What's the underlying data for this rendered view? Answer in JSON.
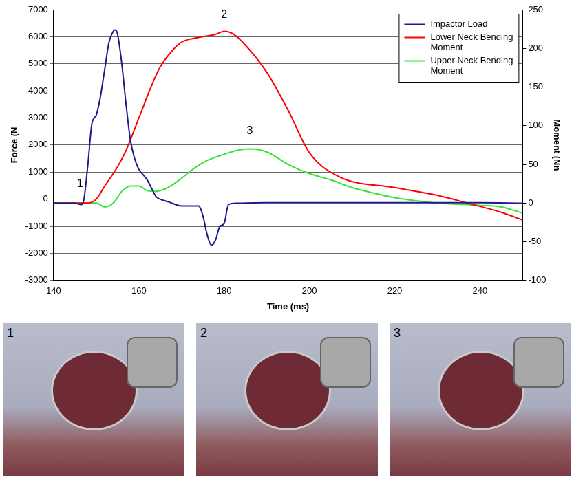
{
  "chart_data": {
    "type": "line",
    "x_label": "Time (ms)",
    "y_label": "Force (N",
    "y2_label": "Moment (Nn",
    "xlim": [
      140,
      250
    ],
    "xticks": [
      140,
      160,
      180,
      200,
      220,
      240
    ],
    "ylim": [
      -3000,
      7000
    ],
    "yticks": [
      -3000,
      -2000,
      -1000,
      0,
      1000,
      2000,
      3000,
      4000,
      5000,
      6000,
      7000
    ],
    "y2lim": [
      -100,
      250
    ],
    "y2ticks": [
      -100,
      -50,
      0,
      50,
      100,
      150,
      200,
      250
    ],
    "grid": true,
    "legend": "upper right",
    "series": [
      {
        "name": "Impactor Load",
        "color": "#1a1a8c",
        "axis": "y",
        "x": [
          140,
          145,
          146.5,
          147,
          148,
          149,
          150,
          151,
          152,
          153,
          154,
          154.5,
          155,
          156,
          157,
          158,
          159,
          160,
          161,
          162,
          163,
          164,
          165,
          167,
          170,
          172,
          174,
          175,
          176,
          177,
          178,
          179,
          180,
          181,
          183,
          190,
          200,
          220,
          240,
          250
        ],
        "values": [
          -150,
          -150,
          -200,
          -100,
          1200,
          2800,
          3100,
          3800,
          4800,
          5800,
          6200,
          6250,
          6100,
          5000,
          3500,
          2200,
          1500,
          1100,
          900,
          700,
          400,
          100,
          0,
          -100,
          -250,
          -250,
          -250,
          -600,
          -1300,
          -1700,
          -1500,
          -1000,
          -900,
          -200,
          -150,
          -130,
          -130,
          -130,
          -130,
          -150
        ]
      },
      {
        "name": "Lower Neck Bending Moment",
        "color": "#ff0000",
        "axis": "y2",
        "x": [
          140,
          148,
          150,
          152,
          155,
          157,
          160,
          163,
          165,
          168,
          170,
          175,
          178,
          180,
          182,
          185,
          190,
          195,
          200,
          207,
          220,
          230,
          237,
          245,
          250
        ],
        "values": [
          0,
          0,
          5,
          22,
          47,
          68,
          110,
          152,
          176,
          198,
          208,
          215,
          218,
          222,
          219,
          204,
          169,
          120,
          65,
          34,
          20,
          10,
          0,
          -12,
          -22
        ]
      },
      {
        "name": "Upper Neck Bending Moment",
        "color": "#33e633",
        "axis": "y2",
        "x": [
          140,
          150,
          152,
          154,
          156,
          158,
          160,
          162,
          164,
          166,
          168,
          170,
          173,
          176,
          180,
          183,
          186,
          190,
          195,
          200,
          205,
          210,
          215,
          220,
          225,
          230,
          240,
          245,
          250
        ],
        "values": [
          0,
          0,
          -5,
          0,
          15,
          22,
          22,
          16,
          15,
          18,
          24,
          32,
          45,
          55,
          63,
          68,
          70,
          66,
          50,
          38,
          30,
          20,
          13,
          7,
          3,
          0,
          -3,
          -5,
          -13
        ]
      }
    ],
    "annotations": [
      {
        "text": "1",
        "x": 146.2,
        "y": 350
      },
      {
        "text": "2",
        "x": 180,
        "y": 6600
      },
      {
        "text": "3",
        "x": 186,
        "y": 2300
      }
    ]
  },
  "photos": [
    {
      "label": "1"
    },
    {
      "label": "2"
    },
    {
      "label": "3"
    }
  ]
}
